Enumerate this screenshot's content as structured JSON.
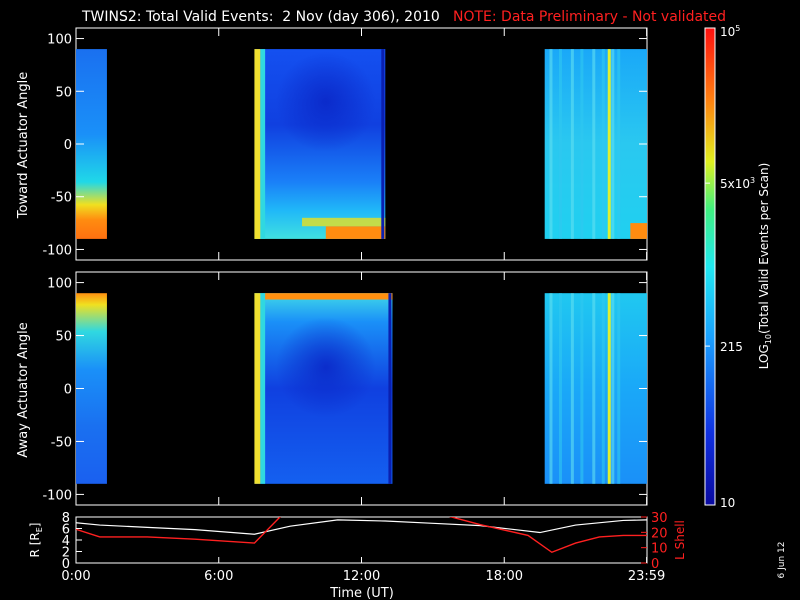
{
  "header": {
    "title": "TWINS2: Total Valid Events:  2 Nov (day 306), 2010",
    "note": "NOTE: Data Preliminary - Not validated",
    "note_color": "#ff2020"
  },
  "date_stamp": "6 Jun 12",
  "colorbar": {
    "label": "LOG10(Total Valid Events per Scan)",
    "label_prefix": "LOG",
    "label_sub": "10",
    "label_rest": "(Total Valid Events per Scan)",
    "scale": "log",
    "range": [
      10,
      100000
    ],
    "ticks": [
      {
        "value": 100000,
        "base": "10",
        "exp": "5",
        "display": "10^5"
      },
      {
        "value": 5000,
        "base": "5x10",
        "exp": "3",
        "display": "5x10^3"
      },
      {
        "value": 215,
        "base": "215",
        "exp": "",
        "display": "215"
      },
      {
        "value": 10,
        "base": "10",
        "exp": "",
        "display": "10"
      }
    ]
  },
  "time_axis": {
    "xlabel": "Time (UT)",
    "range_hours": [
      0,
      24
    ],
    "ticks": [
      {
        "value": 0,
        "label": "0:00"
      },
      {
        "value": 6,
        "label": "6:00"
      },
      {
        "value": 12,
        "label": "12:00"
      },
      {
        "value": 18,
        "label": "18:00"
      },
      {
        "value": 23.983,
        "label": "23:59"
      }
    ]
  },
  "chart_data": [
    {
      "type": "heatmap",
      "ylabel": "Toward Actuator Angle",
      "ylim": [
        -110,
        110
      ],
      "yticks": [
        100,
        50,
        0,
        -50,
        -100
      ],
      "data_coverage_hours": [
        [
          0,
          1.3
        ],
        [
          7.5,
          13.0
        ],
        [
          19.7,
          24.0
        ]
      ],
      "data_angle_range": [
        -90,
        90
      ],
      "panel": "toward"
    },
    {
      "type": "heatmap",
      "ylabel": "Away Actuator Angle",
      "ylim": [
        -110,
        110
      ],
      "yticks": [
        100,
        50,
        0,
        -50,
        -100
      ],
      "data_coverage_hours": [
        [
          0,
          1.3
        ],
        [
          7.5,
          13.3
        ],
        [
          19.7,
          24.0
        ]
      ],
      "data_angle_range": [
        -90,
        90
      ],
      "panel": "away"
    },
    {
      "type": "line",
      "ylabel_left": "R [RE]",
      "ylabel_left_prefix": "R [R",
      "ylabel_left_sub": "E",
      "ylabel_left_suffix": "]",
      "ylabel_right": "L Shell",
      "ylim_left": [
        0,
        8
      ],
      "yticks_left": [
        0,
        2,
        4,
        6,
        8
      ],
      "ylim_right": [
        0,
        30
      ],
      "yticks_right": [
        0,
        10,
        20,
        30
      ],
      "series": [
        {
          "name": "R [RE]",
          "color": "#ffffff",
          "x": [
            0,
            1,
            3,
            5,
            7.5,
            9,
            11,
            13,
            15,
            17,
            19.5,
            21,
            23,
            24
          ],
          "y": [
            7.0,
            6.6,
            6.2,
            5.8,
            5.0,
            6.4,
            7.5,
            7.3,
            6.9,
            6.5,
            5.3,
            6.6,
            7.4,
            7.5
          ]
        },
        {
          "name": "L Shell",
          "color": "#ff2020",
          "segments": [
            {
              "x": [
                0,
                1,
                3,
                5,
                7.5,
                8.7
              ],
              "y": [
                22,
                17,
                17,
                15.5,
                13,
                32
              ]
            },
            {
              "x": [
                15.3,
                17,
                19,
                20,
                21,
                22,
                23,
                24
              ],
              "y": [
                32,
                25,
                18,
                7,
                13,
                17,
                18,
                18
              ]
            }
          ]
        }
      ]
    }
  ]
}
